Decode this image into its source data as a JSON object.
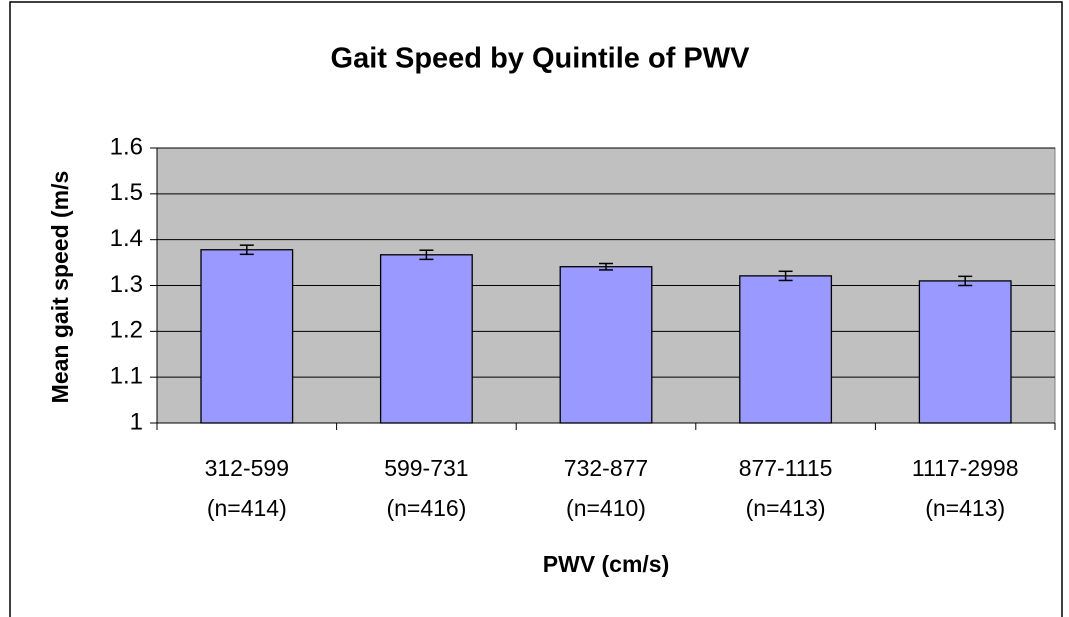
{
  "chart_data": {
    "type": "bar",
    "title": "Gait Speed by Quintile of PWV",
    "x_label": "PWV (cm/s)",
    "y_label": "Mean gait speed (m/s",
    "categories": [
      [
        "312-599",
        "(n=414)"
      ],
      [
        "599-731",
        "(n=416)"
      ],
      [
        "732-877",
        "(n=410)"
      ],
      [
        "877-1115",
        "(n=413)"
      ],
      [
        "1117-2998",
        "(n=413)"
      ]
    ],
    "values": [
      1.378,
      1.367,
      1.341,
      1.321,
      1.31
    ],
    "errors": [
      0.01,
      0.01,
      0.007,
      0.01,
      0.01
    ],
    "color": "#9999ff",
    "plot_background": "#c0c0c0",
    "ylim": [
      1,
      1.6
    ],
    "yticks": [
      1,
      1.1,
      1.2,
      1.3,
      1.4,
      1.5,
      1.6
    ],
    "grid": true
  }
}
